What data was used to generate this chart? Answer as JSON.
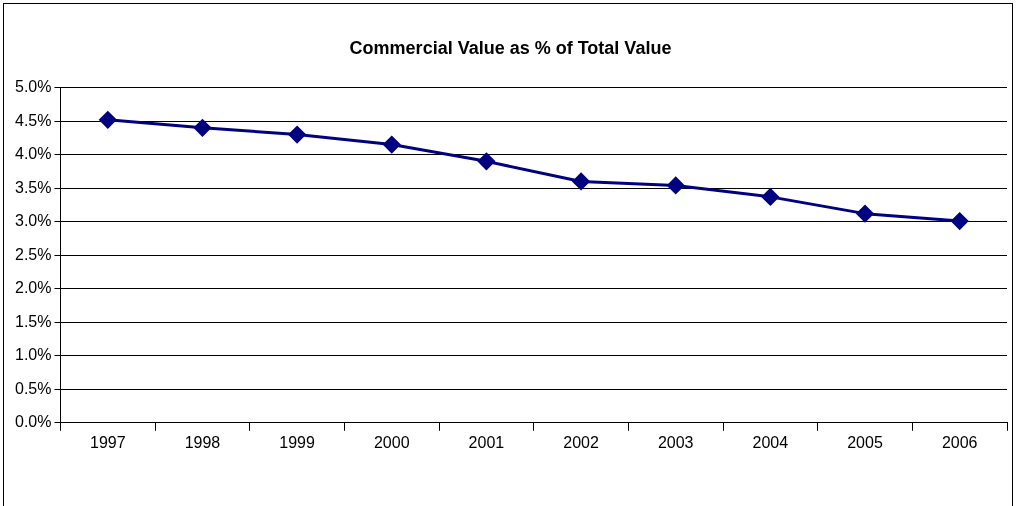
{
  "chart_data": {
    "type": "line",
    "title": "Commercial Value as % of Total Value",
    "categories": [
      "1997",
      "1998",
      "1999",
      "2000",
      "2001",
      "2002",
      "2003",
      "2004",
      "2005",
      "2006"
    ],
    "series": [
      {
        "color": "#000080",
        "values": [
          4.52,
          4.4,
          4.3,
          4.15,
          3.9,
          3.6,
          3.54,
          3.37,
          3.12,
          3.01
        ]
      }
    ],
    "ylim": [
      0,
      5
    ],
    "yticks": [
      {
        "value": 0,
        "label": "0.0%"
      },
      {
        "value": 0.5,
        "label": "0.5%"
      },
      {
        "value": 1,
        "label": "1.0%"
      },
      {
        "value": 1.5,
        "label": "1.5%"
      },
      {
        "value": 2,
        "label": "2.0%"
      },
      {
        "value": 2.5,
        "label": "2.5%"
      },
      {
        "value": 3,
        "label": "3.0%"
      },
      {
        "value": 3.5,
        "label": "3.5%"
      },
      {
        "value": 4,
        "label": "4.0%"
      },
      {
        "value": 4.5,
        "label": "4.5%"
      },
      {
        "value": 5,
        "label": "5.0%"
      }
    ],
    "grid": "y",
    "legend": false,
    "marker": "diamond",
    "line_style": "solid"
  }
}
